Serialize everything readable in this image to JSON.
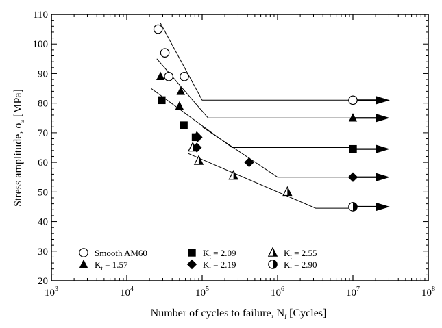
{
  "chart_data": {
    "type": "scatter",
    "xscale": "log",
    "xlim": [
      1000,
      100000000
    ],
    "ylim": [
      20,
      110
    ],
    "xlabel_main": "Number of cycles to failure, N",
    "xlabel_sub": "f",
    "xlabel_tail": " [Cycles]",
    "ylabel_main": "Stress amplitude, σ",
    "ylabel_sub": "a",
    "ylabel_tail": " [MPa]",
    "x_tick_base": "10",
    "x_tick_exponents": [
      "3",
      "4",
      "5",
      "6",
      "7",
      "8"
    ],
    "y_ticks": [
      "20",
      "30",
      "40",
      "50",
      "60",
      "70",
      "80",
      "90",
      "100",
      "110"
    ],
    "series": [
      {
        "name": "Smooth AM60",
        "marker": "circle-open",
        "legend_parts": [
          "Smooth AM60"
        ],
        "points": [
          [
            26000,
            105
          ],
          [
            32000,
            97
          ],
          [
            36000,
            89
          ],
          [
            58000,
            89
          ]
        ],
        "runouts": [
          [
            10000000,
            81
          ]
        ],
        "fit": [
          [
            28000,
            107
          ],
          [
            100000,
            81
          ],
          [
            10000000,
            81
          ]
        ]
      },
      {
        "name": "Kt = 1.57",
        "marker": "triangle-filled",
        "legend_parts": [
          "K",
          "t",
          " = 1.57"
        ],
        "points": [
          [
            28000,
            89
          ],
          [
            52000,
            84
          ],
          [
            50000,
            79
          ],
          [
            85000,
            69
          ]
        ],
        "runouts": [
          [
            10000000,
            75
          ]
        ],
        "fit": [
          [
            25000,
            95
          ],
          [
            120000,
            75
          ],
          [
            10000000,
            75
          ]
        ]
      },
      {
        "name": "Kt = 2.09",
        "marker": "square-filled",
        "legend_parts": [
          "K",
          "t",
          " = 2.09"
        ],
        "points": [
          [
            29000,
            81
          ],
          [
            57000,
            72.5
          ],
          [
            82000,
            68.5
          ]
        ],
        "runouts": [
          [
            10000000,
            64.5
          ]
        ],
        "fit": [
          [
            21000,
            85
          ],
          [
            250000,
            65
          ],
          [
            10000000,
            65
          ]
        ]
      },
      {
        "name": "Kt = 2.19",
        "marker": "diamond-filled",
        "legend_parts": [
          "K",
          "t",
          " = 2.19"
        ],
        "points": [
          [
            85000,
            65
          ],
          [
            87000,
            68.5
          ],
          [
            420000,
            60
          ]
        ],
        "runouts": [
          [
            10000000,
            55
          ]
        ],
        "fit": [
          [
            100000,
            72
          ],
          [
            1000000,
            55
          ],
          [
            10000000,
            55
          ]
        ]
      },
      {
        "name": "Kt = 2.55",
        "marker": "triangle-half",
        "legend_parts": [
          "K",
          "t",
          " = 2.55"
        ],
        "points": [
          [
            75000,
            65
          ],
          [
            90000,
            60.5
          ],
          [
            260000,
            55.5
          ],
          [
            1350000,
            50
          ]
        ],
        "runouts": [],
        "fit": [
          [
            65000,
            63
          ],
          [
            3200000,
            44.5
          ],
          [
            10000000,
            44.5
          ]
        ]
      },
      {
        "name": "Kt = 2.90",
        "marker": "circle-half",
        "legend_parts": [
          "K",
          "t",
          " = 2.90"
        ],
        "points": [],
        "runouts": [
          [
            10000000,
            45
          ]
        ],
        "fit": []
      }
    ]
  }
}
